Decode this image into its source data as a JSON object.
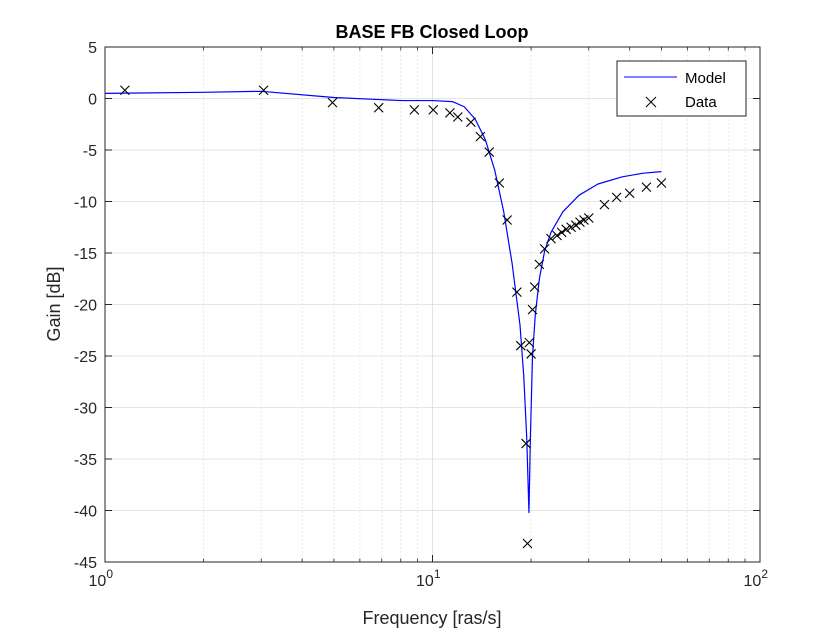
{
  "chart_data": {
    "type": "line",
    "title": "BASE FB Closed Loop",
    "xlabel": "Frequency [ras/s]",
    "ylabel": "Gain [dB]",
    "x_scale": "log",
    "xlim": [
      1,
      100
    ],
    "ylim": [
      -45,
      5
    ],
    "x_ticks": [
      {
        "value": 1,
        "base": "10",
        "exp": "0"
      },
      {
        "value": 10,
        "base": "10",
        "exp": "1"
      },
      {
        "value": 100,
        "base": "10",
        "exp": "2"
      }
    ],
    "y_ticks": [
      5,
      0,
      -5,
      -10,
      -15,
      -20,
      -25,
      -30,
      -35,
      -40,
      -45
    ],
    "y_tick_labels": [
      "5",
      "0",
      "-5",
      "-10",
      "-15",
      "-20",
      "-25",
      "-30",
      "-35",
      "-40",
      "-45"
    ],
    "grid": true,
    "minor_grid_x": true,
    "legend_position": "top-right",
    "series": [
      {
        "name": "Model",
        "style": "line",
        "color": "#0000ff",
        "x": [
          1.0,
          2.0,
          3.0,
          5.0,
          8.0,
          10.0,
          11.5,
          12.5,
          13.5,
          14.5,
          15.5,
          16.5,
          17.5,
          18.5,
          19.0,
          19.4,
          19.7,
          19.9,
          20.2,
          20.6,
          21.2,
          22.0,
          23.0,
          25.0,
          28.0,
          32.0,
          38.0,
          44.0,
          50.0
        ],
        "y": [
          0.5,
          0.6,
          0.7,
          0.1,
          -0.2,
          -0.2,
          -0.3,
          -0.8,
          -2.0,
          -4.0,
          -7.0,
          -11.0,
          -16.0,
          -22.0,
          -27.0,
          -33.0,
          -40.2,
          -33.0,
          -25.0,
          -21.0,
          -17.5,
          -14.8,
          -13.0,
          -11.0,
          -9.4,
          -8.3,
          -7.6,
          -7.25,
          -7.1
        ]
      },
      {
        "name": "Data",
        "style": "marker-x",
        "color": "#000000",
        "x": [
          1.15,
          3.05,
          4.95,
          6.85,
          8.8,
          10.05,
          11.3,
          11.95,
          13.1,
          14.0,
          14.9,
          16.0,
          16.9,
          18.1,
          18.6,
          19.3,
          19.5,
          19.75,
          20.0,
          20.2,
          20.5,
          21.2,
          22.0,
          23.0,
          24.0,
          24.8,
          25.6,
          26.5,
          27.4,
          28.2,
          29.0,
          30.0,
          33.5,
          36.5,
          40.0,
          45.0,
          50.0
        ],
        "y": [
          0.8,
          0.8,
          -0.4,
          -0.9,
          -1.1,
          -1.1,
          -1.4,
          -1.8,
          -2.3,
          -3.7,
          -5.2,
          -8.2,
          -11.8,
          -18.8,
          -24.0,
          -33.5,
          -43.2,
          -23.7,
          -24.8,
          -20.5,
          -18.3,
          -16.1,
          -14.6,
          -13.6,
          -13.3,
          -13.0,
          -12.7,
          -12.5,
          -12.3,
          -12.0,
          -11.8,
          -11.6,
          -10.3,
          -9.6,
          -9.2,
          -8.6,
          -8.2
        ]
      }
    ]
  }
}
